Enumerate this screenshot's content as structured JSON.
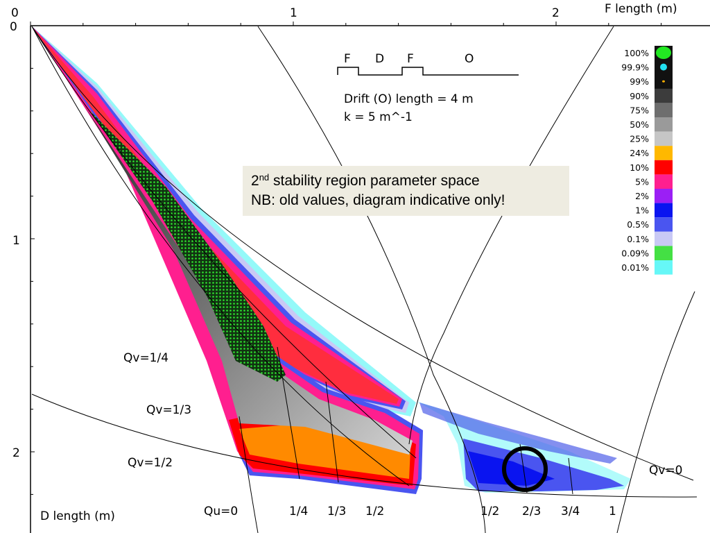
{
  "chart_data": {
    "type": "heatmap",
    "title": "",
    "xlabel": "F length (m)",
    "ylabel": "D length (m)",
    "xlim": [
      0,
      2.5
    ],
    "ylim": [
      0,
      2.3
    ],
    "y_axis_inverted": true,
    "x_ticks": [
      {
        "value": 0,
        "label": "0"
      },
      {
        "value": 1,
        "label": "1"
      },
      {
        "value": 2,
        "label": "2"
      }
    ],
    "y_ticks": [
      {
        "value": 0,
        "label": "0"
      },
      {
        "value": 1,
        "label": "1"
      },
      {
        "value": 2,
        "label": "2"
      }
    ],
    "grid": false,
    "lattice_schematic": {
      "elements": [
        "F",
        "D",
        "F",
        "O"
      ],
      "drift_label": "Drift (O) length = 4 m",
      "k_label": "k = 5 m^-1"
    },
    "legend": {
      "placement": "top-right",
      "entries": [
        {
          "label": "100%",
          "color": "#22e822",
          "marker": "big-dot"
        },
        {
          "label": "99.9%",
          "color": "#22e0f0",
          "marker": "dot"
        },
        {
          "label": "99%",
          "color": "#ffb000",
          "marker": "tiny-dot"
        },
        {
          "label": "90%",
          "color": "#3c3c3c",
          "marker": "square"
        },
        {
          "label": "75%",
          "color": "#6e6e6e",
          "marker": "square"
        },
        {
          "label": "50%",
          "color": "#9a9a9a",
          "marker": "square"
        },
        {
          "label": "25%",
          "color": "#c6c6c6",
          "marker": "square"
        },
        {
          "label": "24%",
          "color": "#ffb800",
          "marker": "square"
        },
        {
          "label": "10%",
          "color": "#ff0000",
          "marker": "square"
        },
        {
          "label": "5%",
          "color": "#ff1f8f",
          "marker": "square"
        },
        {
          "label": "2%",
          "color": "#9b1ff5",
          "marker": "square"
        },
        {
          "label": "1%",
          "color": "#0a14f0",
          "marker": "square"
        },
        {
          "label": "0.5%",
          "color": "#4a55f0",
          "marker": "square"
        },
        {
          "label": "0.1%",
          "color": "#c9c9f5",
          "marker": "square"
        },
        {
          "label": "0.09%",
          "color": "#44e044",
          "marker": "square"
        },
        {
          "label": "0.01%",
          "color": "#66f7f7",
          "marker": "square"
        }
      ]
    },
    "contour_labels": {
      "qv": [
        "Qv=1/4",
        "Qv=1/3",
        "Qv=1/2",
        "Qv=0"
      ],
      "qu": [
        "Qu=0",
        "1/4",
        "1/3",
        "1/2",
        "1/2",
        "2/3",
        "3/4",
        "1"
      ]
    },
    "annotation": {
      "line1_main": "2",
      "line1_sup": "nd",
      "line1_rest": " stability region parameter space",
      "line2": "NB: old values, diagram indicative only!"
    },
    "highlight_circle": {
      "x": 1.86,
      "y": 2.1
    }
  }
}
